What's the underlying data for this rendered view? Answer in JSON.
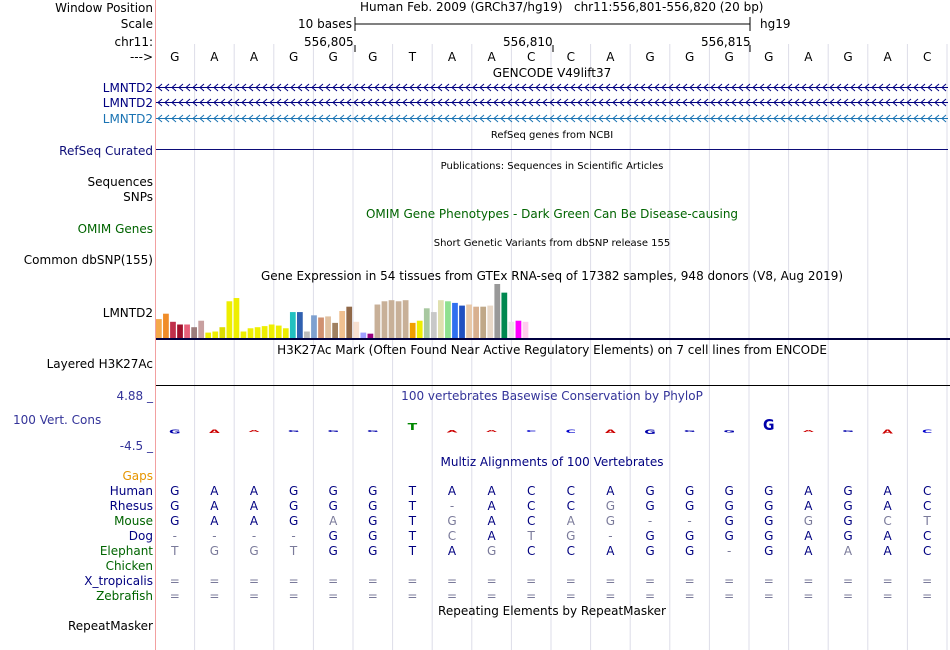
{
  "header": {
    "window_position_label": "Window Position",
    "title": "Human Feb. 2009 (GRCh37/hg19)",
    "position": "chr11:556,801-556,820 (20 bp)",
    "scale_label": "Scale",
    "scale_text": "10 bases",
    "db": "hg19",
    "chrom_label": "chr11:",
    "ticks": [
      "556,805",
      "556,810",
      "556,815"
    ],
    "strand_label": "--->"
  },
  "sequence": [
    "G",
    "A",
    "A",
    "G",
    "G",
    "G",
    "T",
    "A",
    "A",
    "C",
    "C",
    "A",
    "G",
    "G",
    "G",
    "G",
    "A",
    "G",
    "A",
    "C"
  ],
  "tracks": {
    "gencode": {
      "title": "GENCODE V49lift37",
      "labels": [
        "LMNTD2",
        "LMNTD2",
        "LMNTD2"
      ],
      "colors": [
        "#000080",
        "#000080",
        "#1a73b3"
      ]
    },
    "refseq": {
      "title": "RefSeq genes from NCBI",
      "label": "RefSeq Curated",
      "color": "#0c0c78"
    },
    "publications": {
      "title": "Publications: Sequences in Scientific Articles",
      "label_1": "Sequences",
      "label_2": "SNPs"
    },
    "omim": {
      "title": "OMIM Gene Phenotypes - Dark Green Can Be Disease-causing",
      "label": "OMIM Genes",
      "color": "#006400"
    },
    "dbsnp": {
      "title": "Short Genetic Variants from dbSNP release 155",
      "label": "Common dbSNP(155)"
    },
    "gtex": {
      "title": "Gene Expression in 54 tissues from GTEx RNA-seq of 17382 samples, 948 donors (V8, Aug 2019)",
      "label": "LMNTD2",
      "bars": [
        {
          "color": "#f5a84a",
          "value": 0.35
        },
        {
          "color": "#f08c28",
          "value": 0.45
        },
        {
          "color": "#c0304b",
          "value": 0.3
        },
        {
          "color": "#a0102b",
          "value": 0.25
        },
        {
          "color": "#e8607a",
          "value": 0.25
        },
        {
          "color": "#9c7c7c",
          "value": 0.2
        },
        {
          "color": "#c8a0a0",
          "value": 0.32
        },
        {
          "color": "#eeee00",
          "value": 0.1
        },
        {
          "color": "#eeee00",
          "value": 0.12
        },
        {
          "color": "#dddd00",
          "value": 0.2
        },
        {
          "color": "#eeee00",
          "value": 0.68
        },
        {
          "color": "#eeee00",
          "value": 0.74
        },
        {
          "color": "#eeee00",
          "value": 0.12
        },
        {
          "color": "#eeee00",
          "value": 0.18
        },
        {
          "color": "#eeee00",
          "value": 0.2
        },
        {
          "color": "#eeee00",
          "value": 0.22
        },
        {
          "color": "#eeee00",
          "value": 0.25
        },
        {
          "color": "#eeee00",
          "value": 0.23
        },
        {
          "color": "#eeee00",
          "value": 0.18
        },
        {
          "color": "#22c0c0",
          "value": 0.48
        },
        {
          "color": "#3060b0",
          "value": 0.48
        },
        {
          "color": "#bbbbbb",
          "value": 0.12
        },
        {
          "color": "#7ea0d0",
          "value": 0.42
        },
        {
          "color": "#d09070",
          "value": 0.38
        },
        {
          "color": "#e0c0a0",
          "value": 0.4
        },
        {
          "color": "#a08060",
          "value": 0.28
        },
        {
          "color": "#f0c090",
          "value": 0.5
        },
        {
          "color": "#906848",
          "value": 0.58
        },
        {
          "color": "#f8e0d0",
          "value": 0.3
        },
        {
          "color": "#a0a0ff",
          "value": 0.1
        },
        {
          "color": "#990080",
          "value": 0.08
        },
        {
          "color": "#c8b098",
          "value": 0.62
        },
        {
          "color": "#c8b098",
          "value": 0.68
        },
        {
          "color": "#c8b098",
          "value": 0.7
        },
        {
          "color": "#c8b098",
          "value": 0.68
        },
        {
          "color": "#c8b098",
          "value": 0.7
        },
        {
          "color": "#f0a000",
          "value": 0.28
        },
        {
          "color": "#eeee00",
          "value": 0.32
        },
        {
          "color": "#a8c8a0",
          "value": 0.55
        },
        {
          "color": "#c8c8c8",
          "value": 0.48
        },
        {
          "color": "#e0e0b0",
          "value": 0.7
        },
        {
          "color": "#90e090",
          "value": 0.68
        },
        {
          "color": "#3070f0",
          "value": 0.65
        },
        {
          "color": "#2050c0",
          "value": 0.6
        },
        {
          "color": "#e8c8a8",
          "value": 0.62
        },
        {
          "color": "#d8b090",
          "value": 0.58
        },
        {
          "color": "#c0a888",
          "value": 0.58
        },
        {
          "color": "#e8d8c8",
          "value": 0.6
        },
        {
          "color": "#999999",
          "value": 1.0
        },
        {
          "color": "#008850",
          "value": 0.84
        },
        {
          "color": "#e8e8e8",
          "value": 0.3
        },
        {
          "color": "#ff00ff",
          "value": 0.32
        },
        {
          "color": "#ffccee",
          "value": 0.3
        }
      ]
    },
    "h3k27ac": {
      "title": "H3K27Ac Mark (Often Found Near Active Regulatory Elements) on 7 cell lines from ENCODE",
      "label": "Layered H3K27Ac"
    },
    "phylop": {
      "title": "100 vertebrates Basewise Conservation by PhyloP",
      "label": "100 Vert. Cons",
      "max_label": "4.88 _",
      "min_label": "-4.5 _",
      "color": "#333399",
      "values": [
        -0.6,
        -0.5,
        -0.3,
        -0.2,
        -0.3,
        -0.3,
        1.2,
        -0.4,
        -0.3,
        -0.3,
        -0.5,
        -0.5,
        -0.7,
        -0.2,
        -0.4,
        1.8,
        -0.3,
        -0.3,
        -0.6,
        -0.5
      ]
    },
    "multiz": {
      "title": "Multiz Alignments of 100 Vertebrates",
      "gaps_label": "Gaps",
      "species": [
        {
          "name": "Human",
          "bases": [
            "G",
            "A",
            "A",
            "G",
            "G",
            "G",
            "T",
            "A",
            "A",
            "C",
            "C",
            "A",
            "G",
            "G",
            "G",
            "G",
            "A",
            "G",
            "A",
            "C"
          ]
        },
        {
          "name": "Rhesus",
          "bases": [
            "G",
            "A",
            "A",
            "G",
            "G",
            "G",
            "T",
            "-",
            "A",
            "C",
            "C",
            "G",
            "G",
            "G",
            "G",
            "G",
            "A",
            "G",
            "A",
            "C"
          ]
        },
        {
          "name": "Mouse",
          "bases": [
            "G",
            "A",
            "A",
            "G",
            "A",
            "G",
            "T",
            "G",
            "A",
            "C",
            "A",
            "G",
            "-",
            "-",
            "G",
            "G",
            "G",
            "G",
            "C",
            "T"
          ]
        },
        {
          "name": "Dog",
          "bases": [
            "-",
            "-",
            "-",
            "-",
            "G",
            "G",
            "T",
            "C",
            "A",
            "T",
            "G",
            "-",
            "G",
            "G",
            "G",
            "G",
            "A",
            "G",
            "A",
            "C"
          ]
        },
        {
          "name": "Elephant",
          "bases": [
            "T",
            "G",
            "G",
            "T",
            "G",
            "G",
            "T",
            "A",
            "G",
            "C",
            "C",
            "A",
            "G",
            "G",
            "-",
            "G",
            "A",
            "A",
            "A",
            "C"
          ]
        },
        {
          "name": "Chicken",
          "bases": []
        },
        {
          "name": "X_tropicalis",
          "bases": [
            "=",
            "=",
            "=",
            "=",
            "=",
            "=",
            "=",
            "=",
            "=",
            "=",
            "=",
            "=",
            "=",
            "=",
            "=",
            "=",
            "=",
            "=",
            "=",
            "="
          ]
        },
        {
          "name": "Zebrafish",
          "bases": [
            "=",
            "=",
            "=",
            "=",
            "=",
            "=",
            "=",
            "=",
            "=",
            "=",
            "=",
            "=",
            "=",
            "=",
            "=",
            "=",
            "=",
            "=",
            "=",
            "="
          ]
        }
      ]
    },
    "repeatmasker": {
      "title": "Repeating Elements by RepeatMasker",
      "label": "RepeatMasker"
    }
  }
}
